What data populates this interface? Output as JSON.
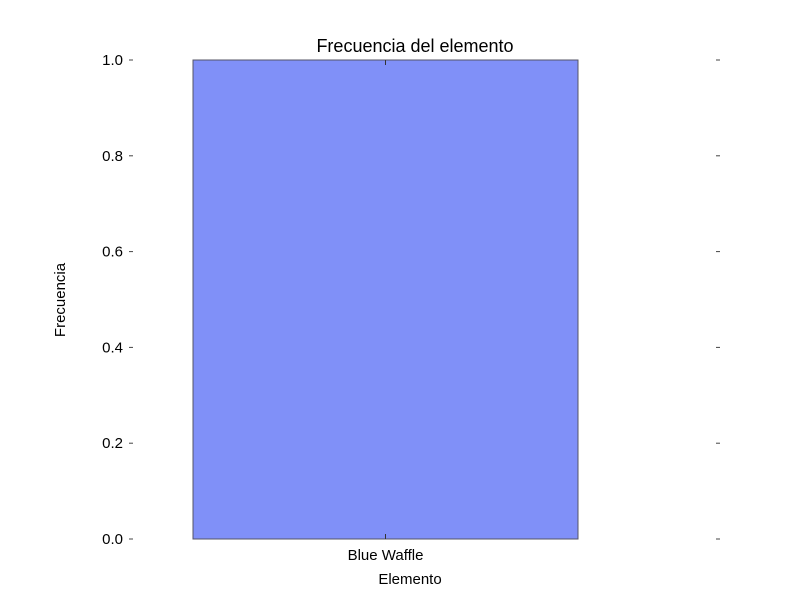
{
  "chart_data": {
    "type": "bar",
    "title": "Frecuencia del elemento",
    "xlabel": "Elemento",
    "ylabel": "Frecuencia",
    "categories": [
      "Blue Waffle"
    ],
    "values": [
      1.0
    ],
    "ylim": [
      0,
      1
    ],
    "yticks": [
      "0.0",
      "0.2",
      "0.4",
      "0.6",
      "0.8",
      "1.0"
    ],
    "grid": false,
    "bar_color": "#8090f8",
    "bar_edge_color": "#555566"
  }
}
